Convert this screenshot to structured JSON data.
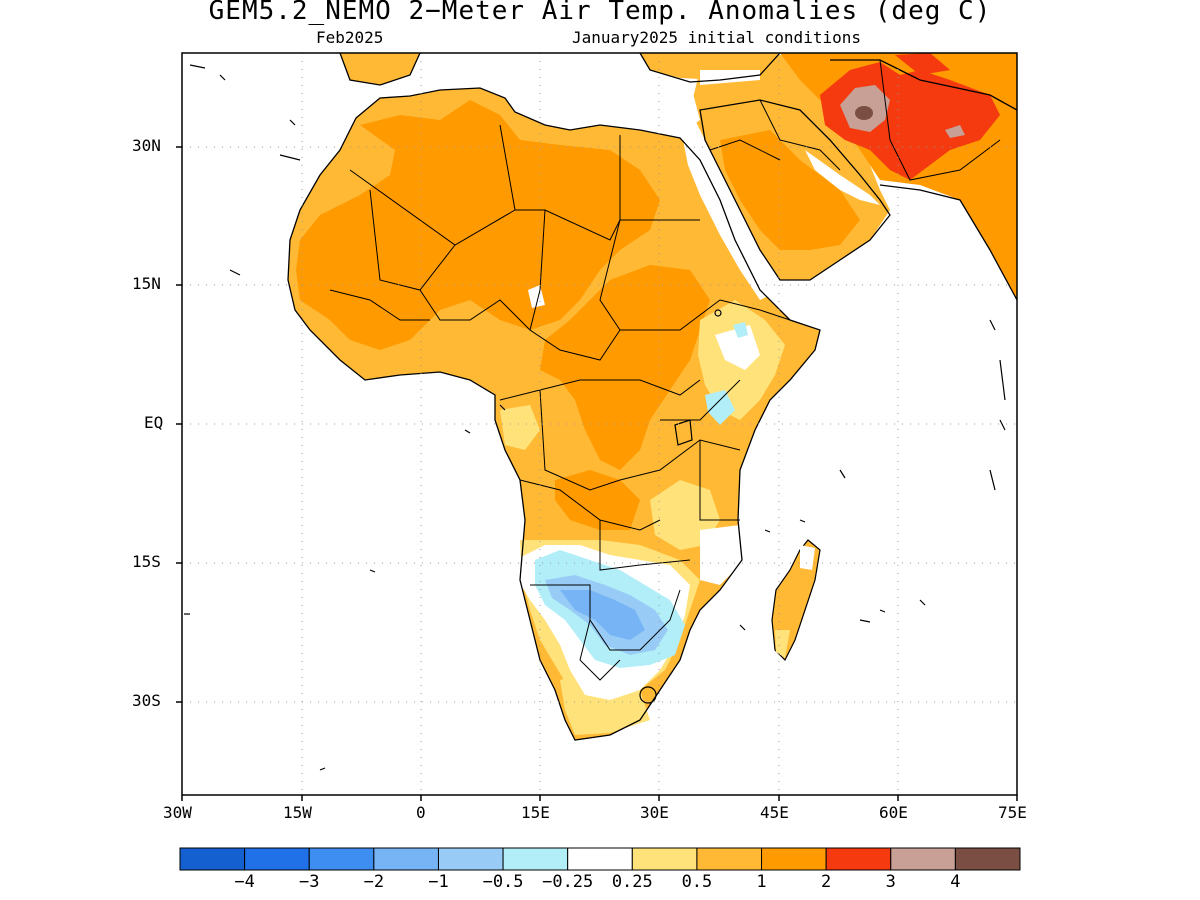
{
  "title": "GEM5.2_NEMO 2−Meter Air Temp. Anomalies (deg C)",
  "subtitle_left": "Feb2025",
  "subtitle_right": "January2025 initial conditions",
  "lat_labels": [
    "30N",
    "15N",
    "EQ",
    "15S",
    "30S"
  ],
  "lon_labels": [
    "30W",
    "15W",
    "0",
    "15E",
    "30E",
    "45E",
    "60E",
    "75E"
  ],
  "colorbar": {
    "colors": [
      "#1560d0",
      "#2070e8",
      "#3d8ef0",
      "#76b4f5",
      "#98ccf6",
      "#b2eef8",
      "#ffffff",
      "#ffe27a",
      "#ffb935",
      "#ff9a00",
      "#f53a10",
      "#c8a096",
      "#7a4e42"
    ],
    "labels": [
      "−4",
      "−3",
      "−2",
      "−1",
      "−0.5",
      "−0.25",
      "0.25",
      "0.5",
      "1",
      "2",
      "3",
      "4"
    ]
  },
  "colors": {
    "land_base": "#ffb935",
    "ocean": "#ffffff",
    "border": "#000000",
    "grid": "#999999"
  }
}
